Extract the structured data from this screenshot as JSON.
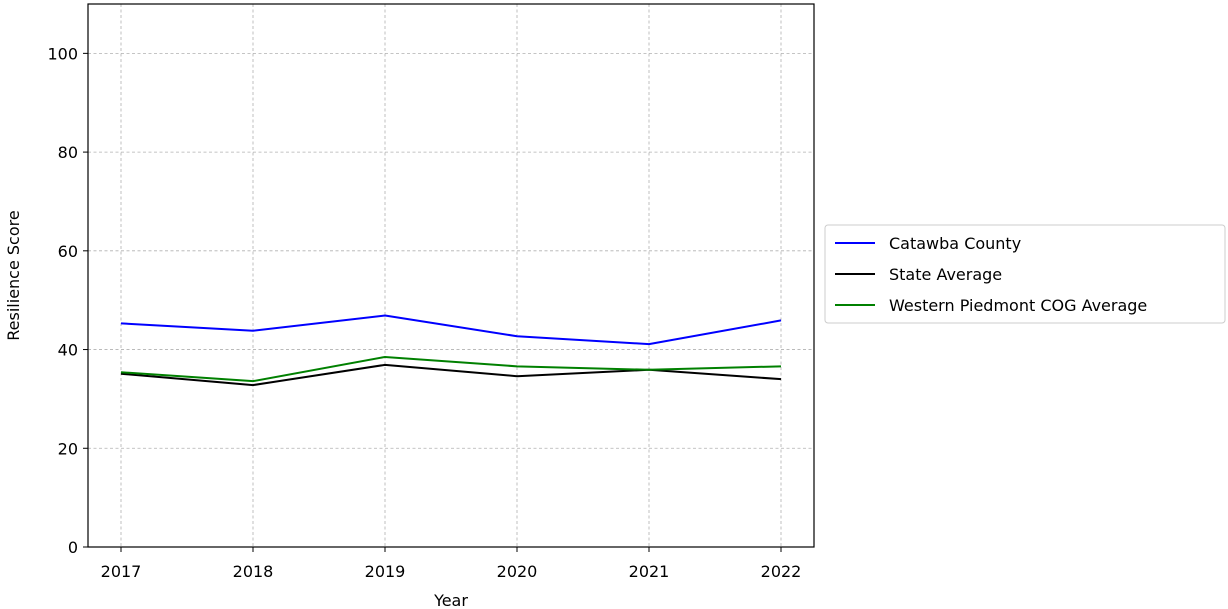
{
  "chart_data": {
    "type": "line",
    "title": "",
    "xlabel": "Year",
    "ylabel": "Resilience Score",
    "categories": [
      "2017",
      "2018",
      "2019",
      "2020",
      "2021",
      "2022"
    ],
    "x": [
      2017,
      2018,
      2019,
      2020,
      2021,
      2022
    ],
    "xlim": [
      2016.75,
      2022.25
    ],
    "ylim": [
      0,
      110
    ],
    "yticks": [
      0,
      20,
      40,
      60,
      80,
      100
    ],
    "grid": true,
    "legend_position": "outside right, centered",
    "series": [
      {
        "name": "Catawba County",
        "color": "#0000ff",
        "values": [
          45.3,
          43.8,
          46.9,
          42.7,
          41.1,
          45.9
        ]
      },
      {
        "name": "State Average",
        "color": "#000000",
        "values": [
          35.1,
          32.8,
          36.9,
          34.6,
          35.9,
          34.0
        ]
      },
      {
        "name": "Western Piedmont COG Average",
        "color": "#008000",
        "values": [
          35.4,
          33.6,
          38.5,
          36.6,
          35.9,
          36.6
        ]
      }
    ]
  }
}
